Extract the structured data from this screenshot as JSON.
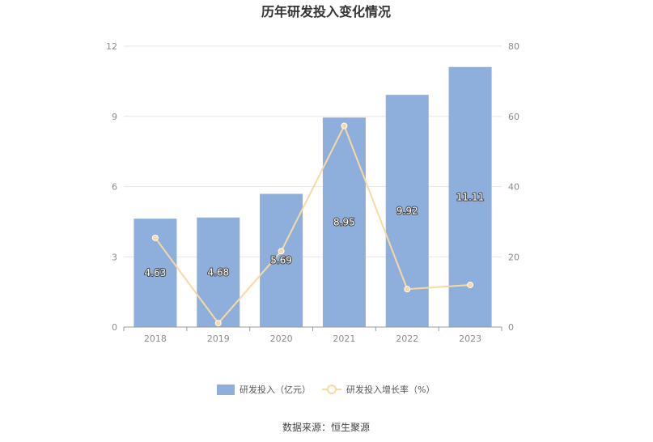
{
  "chart_data": {
    "type": "bar",
    "title": "历年研发投入变化情况",
    "categories": [
      "2018",
      "2019",
      "2020",
      "2021",
      "2022",
      "2023"
    ],
    "series": [
      {
        "name": "研发投入（亿元）",
        "type": "bar",
        "axis": "left",
        "values": [
          4.63,
          4.68,
          5.69,
          8.95,
          9.92,
          11.11
        ],
        "color": "#8eaedb"
      },
      {
        "name": "研发投入增长率（%）",
        "type": "line",
        "axis": "right",
        "values": [
          25.4,
          1.1,
          21.6,
          57.3,
          10.8,
          12.0
        ],
        "color": "#f8d9a2"
      }
    ],
    "left_axis": {
      "min": 0,
      "max": 12,
      "ticks": [
        "0",
        "3",
        "6",
        "9",
        "12"
      ]
    },
    "right_axis": {
      "min": 0,
      "max": 80,
      "ticks": [
        "0",
        "20",
        "40",
        "60",
        "80"
      ]
    },
    "grid": true,
    "legend_position": "bottom"
  },
  "footer": {
    "source": "数据来源：恒生聚源"
  }
}
